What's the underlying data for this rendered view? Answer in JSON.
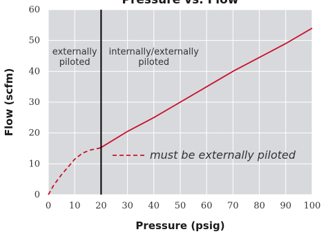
{
  "chart_data": {
    "type": "line",
    "title": "Pressure vs. Flow",
    "xlabel": "Pressure (psig)",
    "ylabel": "Flow (scfm)",
    "xlim": [
      0,
      100
    ],
    "ylim": [
      0,
      60
    ],
    "xticks": [
      0,
      10,
      20,
      30,
      40,
      50,
      60,
      70,
      80,
      90,
      100
    ],
    "yticks": [
      0,
      10,
      20,
      30,
      40,
      50,
      60
    ],
    "grid": true,
    "background_color": "#d8d9dc",
    "line_color": "#c8102e",
    "divider_x": 20,
    "regions": [
      {
        "lines": [
          "externally",
          "piloted"
        ],
        "x_center": 10
      },
      {
        "lines": [
          "internally/externally",
          "piloted"
        ],
        "x_center": 40
      }
    ],
    "series": [
      {
        "style": "dashed",
        "label": "must be externally piloted",
        "x": [
          0,
          2,
          5,
          8,
          10,
          13,
          16,
          19,
          20
        ],
        "y": [
          0,
          3,
          6.5,
          9.5,
          11.5,
          13.5,
          14.5,
          15,
          15.3
        ]
      },
      {
        "style": "solid",
        "x": [
          20,
          30,
          40,
          50,
          60,
          70,
          80,
          90,
          100
        ],
        "y": [
          15.3,
          20.5,
          25,
          30,
          35,
          40,
          44.5,
          49,
          54
        ]
      }
    ]
  }
}
